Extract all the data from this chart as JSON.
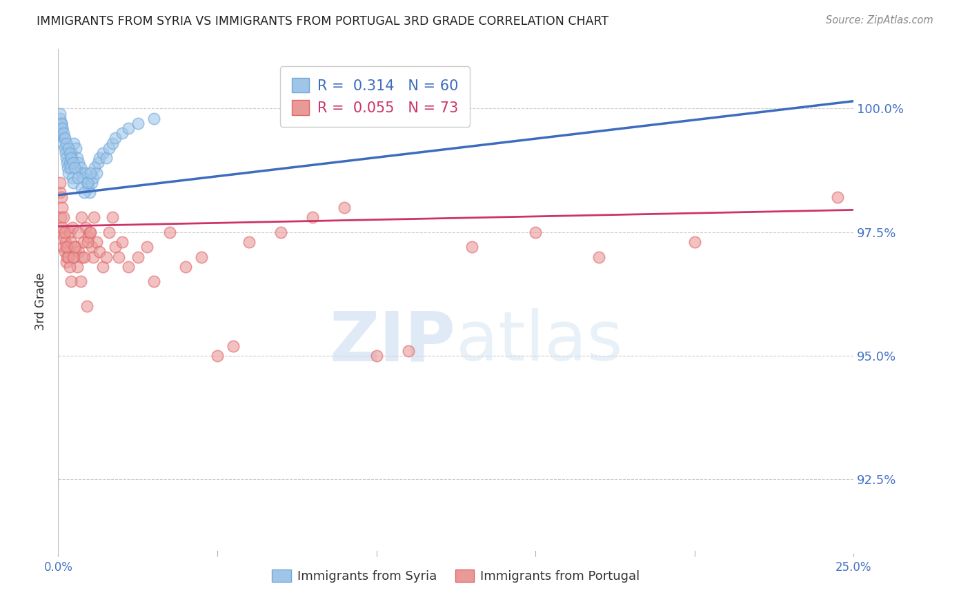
{
  "title": "IMMIGRANTS FROM SYRIA VS IMMIGRANTS FROM PORTUGAL 3RD GRADE CORRELATION CHART",
  "source": "Source: ZipAtlas.com",
  "ylabel": "3rd Grade",
  "yticks": [
    92.5,
    95.0,
    97.5,
    100.0
  ],
  "ytick_labels": [
    "92.5%",
    "95.0%",
    "97.5%",
    "100.0%"
  ],
  "xlim": [
    0.0,
    25.0
  ],
  "ylim": [
    91.0,
    101.2
  ],
  "syria_R": 0.314,
  "syria_N": 60,
  "portugal_R": 0.055,
  "portugal_N": 73,
  "syria_color": "#9fc5e8",
  "syria_edge_color": "#6fa8dc",
  "portugal_color": "#ea9999",
  "portugal_edge_color": "#e06666",
  "syria_line_color": "#3d6cbe",
  "portugal_line_color": "#cc3366",
  "watermark": "ZIPatlas",
  "background_color": "#ffffff",
  "grid_color": "#cccccc",
  "title_color": "#222222",
  "axis_label_color": "#555555",
  "ytick_color": "#4472c4",
  "syria_line_y0": 98.25,
  "syria_line_y1": 100.15,
  "portugal_line_y0": 97.62,
  "portugal_line_y1": 97.95,
  "syria_x": [
    0.05,
    0.08,
    0.1,
    0.12,
    0.15,
    0.18,
    0.2,
    0.22,
    0.25,
    0.28,
    0.3,
    0.32,
    0.35,
    0.38,
    0.4,
    0.42,
    0.45,
    0.48,
    0.5,
    0.55,
    0.6,
    0.65,
    0.7,
    0.75,
    0.8,
    0.85,
    0.9,
    0.95,
    1.0,
    1.05,
    1.1,
    1.15,
    1.2,
    1.25,
    1.3,
    1.4,
    1.5,
    1.6,
    1.7,
    1.8,
    2.0,
    2.2,
    2.5,
    3.0,
    0.06,
    0.09,
    0.13,
    0.17,
    0.21,
    0.26,
    0.31,
    0.36,
    0.41,
    0.46,
    0.52,
    0.62,
    0.72,
    0.82,
    0.92,
    1.02
  ],
  "syria_y": [
    99.8,
    99.5,
    99.7,
    99.6,
    99.3,
    99.4,
    99.2,
    99.1,
    99.0,
    98.9,
    98.8,
    98.7,
    98.9,
    98.8,
    99.0,
    99.1,
    98.6,
    98.5,
    99.3,
    99.2,
    99.0,
    98.9,
    98.8,
    98.7,
    98.6,
    98.7,
    98.5,
    98.4,
    98.3,
    98.5,
    98.6,
    98.8,
    98.7,
    98.9,
    99.0,
    99.1,
    99.0,
    99.2,
    99.3,
    99.4,
    99.5,
    99.6,
    99.7,
    99.8,
    99.9,
    99.7,
    99.6,
    99.5,
    99.4,
    99.3,
    99.2,
    99.1,
    99.0,
    98.9,
    98.8,
    98.6,
    98.4,
    98.3,
    98.5,
    98.7
  ],
  "portugal_x": [
    0.05,
    0.08,
    0.1,
    0.12,
    0.15,
    0.18,
    0.2,
    0.22,
    0.25,
    0.28,
    0.3,
    0.35,
    0.4,
    0.45,
    0.5,
    0.55,
    0.6,
    0.65,
    0.7,
    0.75,
    0.8,
    0.85,
    0.9,
    0.95,
    1.0,
    1.05,
    1.1,
    1.2,
    1.3,
    1.4,
    1.5,
    1.6,
    1.7,
    1.8,
    1.9,
    2.0,
    2.2,
    2.5,
    2.8,
    3.0,
    3.5,
    4.0,
    4.5,
    5.0,
    5.5,
    6.0,
    7.0,
    8.0,
    9.0,
    10.0,
    11.0,
    13.0,
    15.0,
    17.0,
    20.0,
    24.5,
    0.06,
    0.09,
    0.13,
    0.17,
    0.21,
    0.26,
    0.31,
    0.36,
    0.41,
    0.46,
    0.52,
    0.62,
    0.72,
    0.82,
    0.92,
    1.02,
    1.12
  ],
  "portugal_y": [
    98.3,
    97.8,
    97.5,
    97.6,
    97.2,
    97.4,
    97.1,
    97.3,
    96.9,
    97.0,
    97.2,
    97.5,
    97.3,
    97.6,
    97.0,
    97.2,
    96.8,
    97.1,
    96.5,
    97.0,
    97.3,
    97.6,
    96.0,
    97.4,
    97.5,
    97.2,
    97.0,
    97.3,
    97.1,
    96.8,
    97.0,
    97.5,
    97.8,
    97.2,
    97.0,
    97.3,
    96.8,
    97.0,
    97.2,
    96.5,
    97.5,
    96.8,
    97.0,
    95.0,
    95.2,
    97.3,
    97.5,
    97.8,
    98.0,
    95.0,
    95.1,
    97.2,
    97.5,
    97.0,
    97.3,
    98.2,
    98.5,
    98.2,
    98.0,
    97.8,
    97.5,
    97.2,
    97.0,
    96.8,
    96.5,
    97.0,
    97.2,
    97.5,
    97.8,
    97.0,
    97.3,
    97.5,
    97.8
  ]
}
